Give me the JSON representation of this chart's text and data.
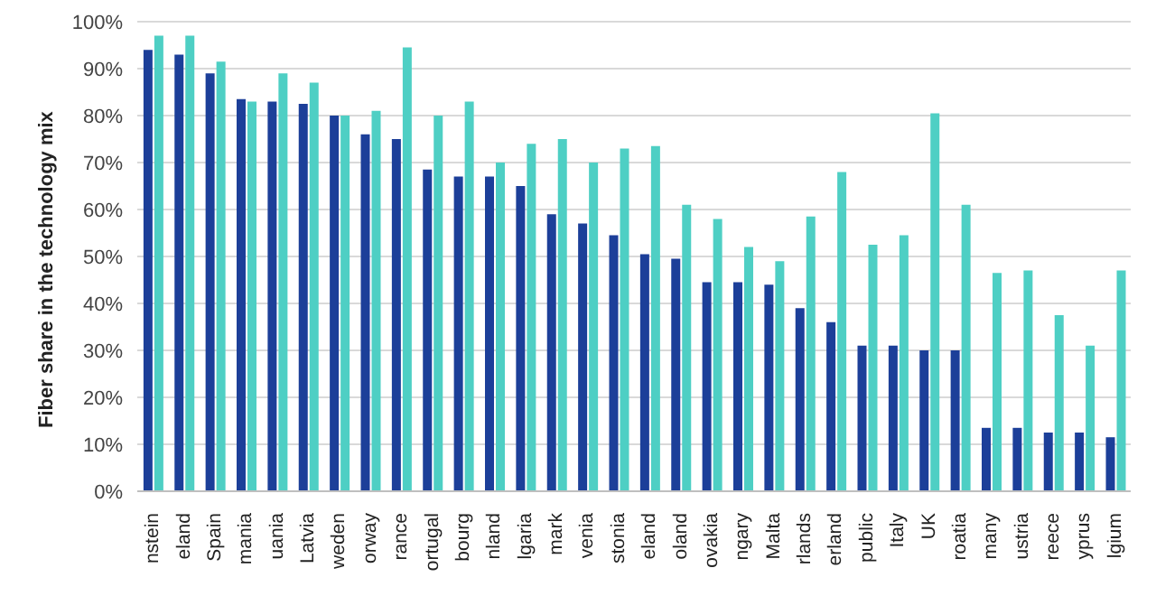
{
  "chart_data": {
    "type": "bar",
    "ylabel": "Fiber share in the technology mix",
    "categories": [
      "nstein",
      "eland",
      "Spain",
      "mania",
      "uania",
      "Latvia",
      "weden",
      "orway",
      "rance",
      "ortugal",
      "bourg",
      "nland",
      "lgaria",
      "mark",
      "venia",
      "stonia",
      "eland",
      "oland",
      "ovakia",
      "ngary",
      "Malta",
      "rlands",
      "erland",
      "public",
      "Italy",
      "UK",
      "roatia",
      "many",
      "ustria",
      "reece",
      "yprus",
      "lgium"
    ],
    "series": [
      {
        "color": "#1c3f99",
        "values": [
          94,
          93,
          89,
          83.5,
          83,
          82.5,
          80,
          76,
          75,
          68.5,
          67,
          67,
          65,
          59,
          57,
          54.5,
          50.5,
          49.5,
          44.5,
          44.5,
          44,
          39,
          36,
          31,
          31,
          30,
          30,
          13.5,
          13.5,
          12.5,
          12.5,
          11.5
        ]
      },
      {
        "color": "#4ecfc4",
        "values": [
          97,
          97,
          91.5,
          83,
          89,
          87,
          80,
          81,
          94.5,
          80,
          83,
          70,
          74,
          75,
          70,
          73,
          73.5,
          61,
          58,
          52,
          49,
          58.5,
          68,
          52.5,
          54.5,
          80.5,
          61,
          46.5,
          47,
          37.5,
          31,
          47
        ]
      }
    ],
    "ylim": [
      0,
      100
    ],
    "yticks": [
      {
        "value": 0,
        "label": "0%"
      },
      {
        "value": 10,
        "label": "10%"
      },
      {
        "value": 20,
        "label": "20%"
      },
      {
        "value": 30,
        "label": "30%"
      },
      {
        "value": 40,
        "label": "40%"
      },
      {
        "value": 50,
        "label": "50%"
      },
      {
        "value": 60,
        "label": "60%"
      },
      {
        "value": 70,
        "label": "70%"
      },
      {
        "value": 80,
        "label": "80%"
      },
      {
        "value": 90,
        "label": "90%"
      },
      {
        "value": 100,
        "label": "100%"
      }
    ],
    "grid": "y"
  }
}
